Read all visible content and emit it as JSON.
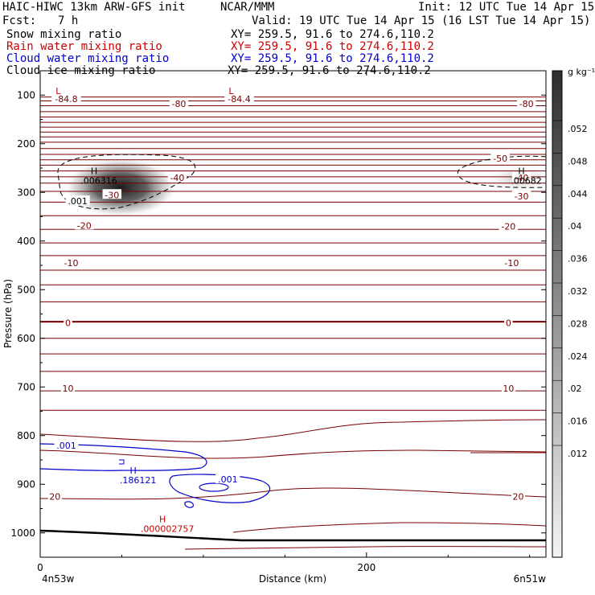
{
  "header": {
    "title": "HAIC-HIWC 13km ARW-GFS init",
    "org": "NCAR/MMM",
    "init": "Init: 12 UTC Tue 14 Apr 15",
    "fcst_label": "Fcst:",
    "fcst_value": "7 h",
    "valid": "Valid: 19 UTC Tue 14 Apr 15 (16 LST Tue 14 Apr 15)"
  },
  "legend": [
    {
      "name": "Snow mixing ratio",
      "xy": "XY= 259.5, 91.6 to 274.6,110.2",
      "color": "#000000"
    },
    {
      "name": "Rain water mixing ratio",
      "xy": "XY= 259.5, 91.6 to 274.6,110.2",
      "color": "#cc0000"
    },
    {
      "name": "Cloud water mixing ratio",
      "xy": "XY= 259.5, 91.6 to 274.6,110.2",
      "color": "#0000cc"
    },
    {
      "name": "Cloud ice mixing ratio",
      "xy": "XY= 259.5, 91.6 to 274.6,110.2",
      "color": "#000000"
    }
  ],
  "colorbar": {
    "unit": "g kg⁻¹",
    "labels": [
      ".052",
      ".048",
      ".044",
      ".04",
      ".036",
      ".032",
      ".028",
      ".024",
      ".02",
      ".016",
      ".012"
    ]
  },
  "colors": {
    "temperature": "#7a0000",
    "rain": "#cc0000",
    "cloud_water": "#0000cc",
    "shading": "#333333"
  },
  "chart_data": {
    "type": "cross-section",
    "xlabel": "Distance (km)",
    "ylabel": "Pressure (hPa)",
    "xlim": [
      0,
      310
    ],
    "ylim": [
      1050,
      50
    ],
    "x_ticks": [
      0,
      200
    ],
    "y_ticks": [
      100,
      200,
      300,
      400,
      500,
      600,
      700,
      800,
      900,
      1000
    ],
    "x_end_labels": [
      "4n53w",
      "6n51w"
    ],
    "temperature_contour_labels": [
      {
        "text": "-84.8",
        "x": 16,
        "p": 108
      },
      {
        "text": "-84.4",
        "x": 122,
        "p": 108
      },
      {
        "text": "-80",
        "x": 85,
        "p": 118
      },
      {
        "text": "-80",
        "x": 298,
        "p": 118
      },
      {
        "text": "-50",
        "x": 282,
        "p": 230
      },
      {
        "text": "-40",
        "x": 84,
        "p": 270
      },
      {
        "text": "-40",
        "x": 295,
        "p": 270
      },
      {
        "text": "-30",
        "x": 44,
        "p": 305
      },
      {
        "text": "-30",
        "x": 295,
        "p": 308
      },
      {
        "text": "-20",
        "x": 27,
        "p": 368
      },
      {
        "text": "-20",
        "x": 287,
        "p": 370
      },
      {
        "text": "-10",
        "x": 19,
        "p": 445
      },
      {
        "text": "-10",
        "x": 289,
        "p": 445
      },
      {
        "text": "0",
        "x": 17,
        "p": 568
      },
      {
        "text": "0",
        "x": 287,
        "p": 568
      },
      {
        "text": "10",
        "x": 17,
        "p": 703
      },
      {
        "text": "10",
        "x": 287,
        "p": 703
      },
      {
        "text": "20",
        "x": 9,
        "p": 925
      },
      {
        "text": "20",
        "x": 293,
        "p": 925
      }
    ],
    "extrema_labels": [
      {
        "mark": "L",
        "value": "",
        "x": 11,
        "p": 98,
        "color": "#cc0000"
      },
      {
        "mark": "L",
        "value": "",
        "x": 117,
        "p": 98,
        "color": "#cc0000"
      },
      {
        "mark": "H",
        "value": ".006316",
        "x": 33,
        "p": 262,
        "color": "#000000"
      },
      {
        "mark": "H",
        "value": ".00682",
        "x": 295,
        "p": 262,
        "color": "#000000"
      },
      {
        "mark": "H",
        "value": ".186121",
        "x": 57,
        "p": 878,
        "color": "#0000cc"
      },
      {
        "mark": "H",
        "value": ".000002757",
        "x": 75,
        "p": 978,
        "color": "#cc0000"
      }
    ],
    "ice_contour_labels": [
      {
        "text": ".001",
        "x": 23,
        "p": 318,
        "color": "#000000"
      },
      {
        "text": ".001",
        "x": 16,
        "p": 820,
        "color": "#0000cc"
      },
      {
        "text": ".001",
        "x": 115,
        "p": 890,
        "color": "#0000cc"
      }
    ]
  }
}
